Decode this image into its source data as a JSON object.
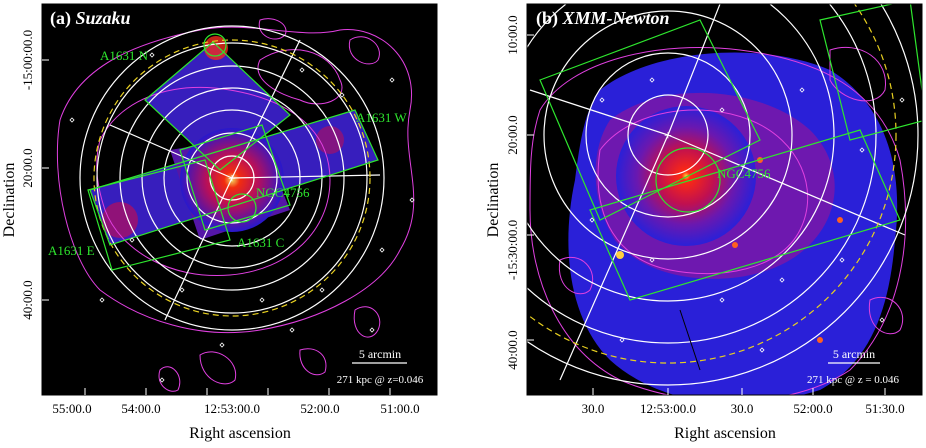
{
  "panel_a": {
    "label": "(a)",
    "title": "Suzaku",
    "x_axis_label": "Right ascension",
    "y_axis_label": "Declination",
    "x_ticks": [
      "55:00.0",
      "54:00.0",
      "12:53:00.0",
      "52:00.0",
      "51:00.0"
    ],
    "y_ticks": [
      "-15:00:00.0",
      "20:00.0",
      "40:00.0"
    ],
    "regions": [
      "A1631 N",
      "A1631 W",
      "NGC4756",
      "A1631 E",
      "A1631 C"
    ],
    "scale_label": "5 arcmin",
    "redshift_label": "271 kpc @ z=0.046"
  },
  "panel_b": {
    "label": "(b)",
    "title": "XMM-Newton",
    "x_axis_label": "Right ascension",
    "y_axis_label": "Declination",
    "x_ticks": [
      "30.0",
      "12:53:00.0",
      "30.0",
      "52:00.0",
      "51:30.0"
    ],
    "y_ticks": [
      "10:00.0",
      "20:00.0",
      "-15:30:00.0",
      "40:00.0"
    ],
    "regions": [
      "NGC4756"
    ],
    "scale_label": "5 arcmin",
    "redshift_label": "271 kpc @ z = 0.046"
  },
  "colors": {
    "background": "#000000",
    "contour": "#e040e0",
    "region": "#2ee62e",
    "annuli": "#ffffff",
    "dashed_circle": "#e8d020",
    "image_low": "#2a1ad8",
    "image_high": "#ff2a10"
  }
}
